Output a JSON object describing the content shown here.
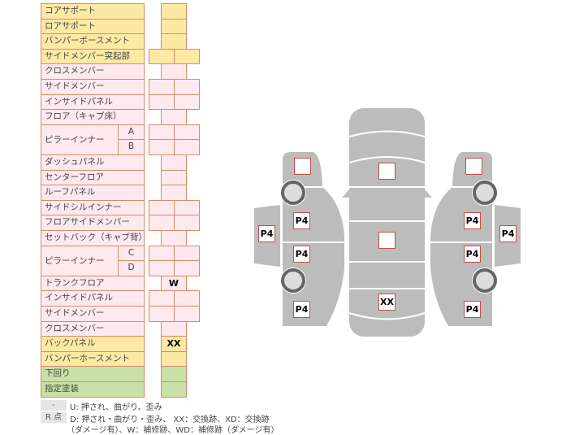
{
  "parts": [
    {
      "label": "コアサポート",
      "color": "yellow",
      "cols": 1,
      "marks": [
        ""
      ]
    },
    {
      "label": "ロアサポート",
      "color": "yellow",
      "cols": 1,
      "marks": [
        ""
      ]
    },
    {
      "label": "バンパーボースメント",
      "color": "yellow",
      "cols": 1,
      "marks": [
        ""
      ]
    },
    {
      "label": "サイドメンバー突起部",
      "color": "yellow",
      "cols": 2,
      "marks": [
        "",
        ""
      ]
    },
    {
      "label": "クロスメンバー",
      "color": "pink",
      "cols": 1,
      "marks": [
        ""
      ]
    },
    {
      "label": "サイドメンバー",
      "color": "pink",
      "cols": 2,
      "marks": [
        "",
        ""
      ]
    },
    {
      "label": "インサイドパネル",
      "color": "pink",
      "cols": 2,
      "marks": [
        "",
        ""
      ]
    },
    {
      "label": "フロア（キャブ床）",
      "color": "pink",
      "cols": 1,
      "marks": [
        ""
      ]
    },
    {
      "label": "ピラーインナー",
      "color": "pink",
      "cols": 2,
      "sub": "A",
      "marks": [
        "",
        ""
      ],
      "group_start": true
    },
    {
      "label": "",
      "color": "pink",
      "cols": 2,
      "sub": "B",
      "marks": [
        "",
        ""
      ],
      "group_cont": true
    },
    {
      "label": "ダッシュパネル",
      "color": "pink",
      "cols": 1,
      "marks": [
        ""
      ]
    },
    {
      "label": "センターフロア",
      "color": "pink",
      "cols": 1,
      "marks": [
        ""
      ]
    },
    {
      "label": "ルーフパネル",
      "color": "pink",
      "cols": 1,
      "marks": [
        ""
      ]
    },
    {
      "label": "サイドシルインナー",
      "color": "pink",
      "cols": 2,
      "marks": [
        "",
        ""
      ]
    },
    {
      "label": "フロアサイドメンバー",
      "color": "pink",
      "cols": 2,
      "marks": [
        "",
        ""
      ]
    },
    {
      "label": "セットバック（キャブ背）",
      "color": "pink",
      "cols": 1,
      "marks": [
        ""
      ]
    },
    {
      "label": "ピラーインナー",
      "color": "pink",
      "cols": 2,
      "sub": "C",
      "marks": [
        "",
        ""
      ],
      "group_start": true
    },
    {
      "label": "",
      "color": "pink",
      "cols": 2,
      "sub": "D",
      "marks": [
        "",
        ""
      ],
      "group_cont": true
    },
    {
      "label": "トランクフロア",
      "color": "pink",
      "cols": 1,
      "marks": [
        "W"
      ]
    },
    {
      "label": "インサイドパネル",
      "color": "pink",
      "cols": 2,
      "marks": [
        "",
        ""
      ]
    },
    {
      "label": "サイドメンバー",
      "color": "pink",
      "cols": 2,
      "marks": [
        "",
        ""
      ]
    },
    {
      "label": "クロスメンバー",
      "color": "pink",
      "cols": 1,
      "marks": [
        ""
      ]
    },
    {
      "label": "バックパネル",
      "color": "yellow",
      "cols": 1,
      "marks": [
        "XX"
      ]
    },
    {
      "label": "バンパーホースメント",
      "color": "yellow",
      "cols": 1,
      "marks": [
        ""
      ]
    },
    {
      "label": "下回り",
      "color": "green",
      "cols": 1,
      "marks": [
        ""
      ]
    },
    {
      "label": "指定塗装",
      "color": "green",
      "cols": 1,
      "marks": [
        ""
      ]
    }
  ],
  "diagram": {
    "left": {
      "front": "",
      "front_door": "P4",
      "fender": "P4",
      "rear_door": "P4",
      "rear": "P4"
    },
    "center": {
      "hood": "",
      "roof": "",
      "trunk": "XX"
    },
    "right": {
      "front": "",
      "front_door": "P4",
      "fender": "P4",
      "rear_door": "P4",
      "rear": "P4"
    }
  },
  "legend": [
    {
      "key": "-",
      "text": "U: 押され、曲がり、歪み"
    },
    {
      "key": "R 点",
      "text": "D: 押され・曲がり・歪み、 XX：交換跡、XD：交換跡"
    },
    {
      "key": "",
      "text": "（ダメージ有）、W：補修跡、WD：補修跡（ダメージ有）"
    }
  ],
  "colors": {
    "yellow": "#fbe9a4",
    "pink": "#fde9ee",
    "green": "#c9e0a6",
    "border": "#d98a6c",
    "body": "#bcbcbc",
    "marker_border": "#c0504d"
  }
}
